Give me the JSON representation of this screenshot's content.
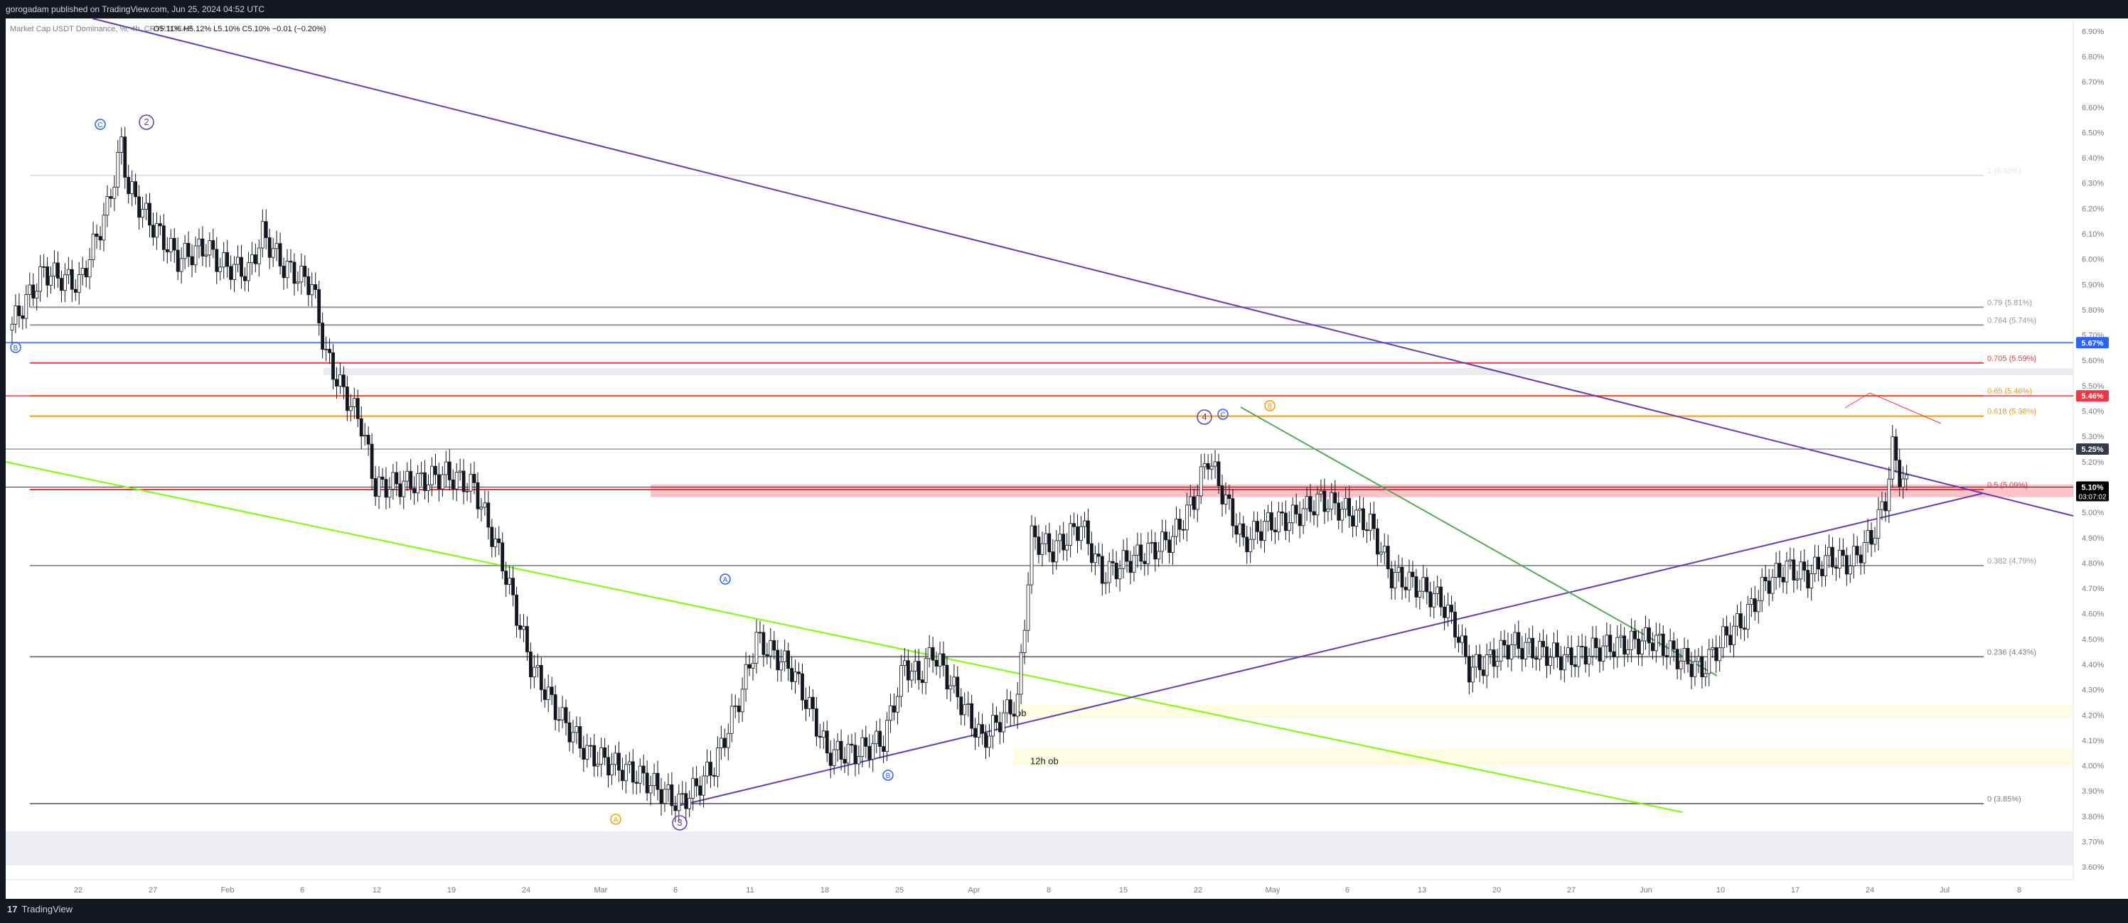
{
  "header": {
    "published": "gorogadam published on TradingView.com, Jun 25, 2024 04:52 UTC",
    "symbol_line": "Market Cap USDT Dominance, %, 4h, CRYPTOCAP",
    "ohlc": "O5.11% H5.12% L5.10% C5.10% −0.01 (−0.20%)"
  },
  "footer": {
    "logo_text": "TradingView",
    "logo_mark": "17"
  },
  "chart_data": {
    "type": "candlestick",
    "ylim": [
      3.55,
      6.95
    ],
    "y_ticks": [
      "6.90%",
      "6.80%",
      "6.70%",
      "6.60%",
      "6.50%",
      "6.40%",
      "6.30%",
      "6.20%",
      "6.10%",
      "6.00%",
      "5.90%",
      "5.80%",
      "5.70%",
      "5.60%",
      "5.50%",
      "5.40%",
      "5.30%",
      "5.20%",
      "5.10%",
      "5.00%",
      "4.90%",
      "4.80%",
      "4.70%",
      "4.60%",
      "4.50%",
      "4.40%",
      "4.30%",
      "4.20%",
      "4.10%",
      "4.00%",
      "3.90%",
      "3.80%",
      "3.70%",
      "3.60%"
    ],
    "x_ticks": [
      "22",
      "27",
      "Feb",
      "6",
      "12",
      "19",
      "24",
      "Mar",
      "6",
      "11",
      "18",
      "25",
      "Apr",
      "8",
      "15",
      "22",
      "May",
      "6",
      "13",
      "20",
      "27",
      "Jun",
      "10",
      "17",
      "24",
      "Jul",
      "8"
    ],
    "price_path": [
      [
        0,
        5.72
      ],
      [
        5,
        5.95
      ],
      [
        10,
        5.9
      ],
      [
        14,
        6.2
      ],
      [
        16,
        6.45
      ],
      [
        17,
        6.28
      ],
      [
        20,
        6.15
      ],
      [
        24,
        6.0
      ],
      [
        28,
        6.05
      ],
      [
        30,
        5.98
      ],
      [
        34,
        5.95
      ],
      [
        36,
        6.1
      ],
      [
        39,
        5.97
      ],
      [
        43,
        5.9
      ],
      [
        45,
        5.62
      ],
      [
        47,
        5.5
      ],
      [
        50,
        5.35
      ],
      [
        52,
        5.1
      ],
      [
        58,
        5.12
      ],
      [
        62,
        5.15
      ],
      [
        66,
        5.1
      ],
      [
        70,
        4.8
      ],
      [
        74,
        4.4
      ],
      [
        78,
        4.2
      ],
      [
        82,
        4.05
      ],
      [
        86,
        4.0
      ],
      [
        90,
        3.95
      ],
      [
        95,
        3.85
      ],
      [
        97,
        3.9
      ],
      [
        100,
        4.0
      ],
      [
        104,
        4.3
      ],
      [
        106,
        4.5
      ],
      [
        108,
        4.45
      ],
      [
        111,
        4.38
      ],
      [
        114,
        4.2
      ],
      [
        116,
        4.05
      ],
      [
        120,
        4.05
      ],
      [
        124,
        4.1
      ],
      [
        127,
        4.4
      ],
      [
        129,
        4.35
      ],
      [
        131,
        4.45
      ],
      [
        134,
        4.3
      ],
      [
        138,
        4.1
      ],
      [
        141,
        4.2
      ],
      [
        143,
        4.25
      ],
      [
        145,
        4.9
      ],
      [
        148,
        4.85
      ],
      [
        152,
        4.95
      ],
      [
        155,
        4.75
      ],
      [
        158,
        4.8
      ],
      [
        162,
        4.85
      ],
      [
        165,
        4.9
      ],
      [
        168,
        5.05
      ],
      [
        170,
        5.22
      ],
      [
        172,
        5.08
      ],
      [
        175,
        4.88
      ],
      [
        178,
        4.95
      ],
      [
        182,
        4.98
      ],
      [
        186,
        5.05
      ],
      [
        190,
        5.0
      ],
      [
        193,
        4.95
      ],
      [
        196,
        4.75
      ],
      [
        199,
        4.72
      ],
      [
        203,
        4.65
      ],
      [
        205,
        4.55
      ],
      [
        207,
        4.38
      ],
      [
        209,
        4.4
      ],
      [
        213,
        4.48
      ],
      [
        217,
        4.45
      ],
      [
        221,
        4.42
      ],
      [
        225,
        4.46
      ],
      [
        229,
        4.48
      ],
      [
        233,
        4.5
      ],
      [
        237,
        4.42
      ],
      [
        240,
        4.38
      ],
      [
        243,
        4.5
      ],
      [
        246,
        4.58
      ],
      [
        249,
        4.72
      ],
      [
        252,
        4.78
      ],
      [
        255,
        4.75
      ],
      [
        258,
        4.82
      ],
      [
        261,
        4.8
      ],
      [
        264,
        4.9
      ],
      [
        266,
        5.05
      ],
      [
        267,
        5.25
      ],
      [
        268,
        5.15
      ],
      [
        269,
        5.1
      ]
    ],
    "x_range": [
      0,
      291
    ],
    "annotations": {
      "fib_levels": [
        {
          "label": "1 (6.33%)",
          "value": 6.33,
          "color": "#e0e3eb"
        },
        {
          "label": "0.79 (5.81%)",
          "value": 5.81,
          "color": "#9598a1"
        },
        {
          "label": "0.764 (5.74%)",
          "value": 5.74,
          "color": "#9598a1"
        },
        {
          "label": "0.705 (5.59%)",
          "value": 5.59,
          "color": "#f23645"
        },
        {
          "label": "0.65 (5.46%)",
          "value": 5.46,
          "color": "#ff9800"
        },
        {
          "label": "0.618 (5.38%)",
          "value": 5.38,
          "color": "#ff9800"
        },
        {
          "label": "0.5 (5.09%)",
          "value": 5.09,
          "color": "#f23645"
        },
        {
          "label": "0.382 (4.79%)",
          "value": 4.79,
          "color": "#9598a1"
        },
        {
          "label": "0.236 (4.43%)",
          "value": 4.43,
          "color": "#787b86"
        },
        {
          "label": "0 (3.85%)",
          "value": 3.85,
          "color": "#787b86"
        }
      ],
      "zones": [
        {
          "label": "",
          "y_top": 5.11,
          "y_bottom": 5.06,
          "color": "#f23645"
        },
        {
          "label": "ob",
          "y_top": 4.24,
          "y_bottom": 4.19,
          "color": "#fff59d"
        },
        {
          "label": "12h ob",
          "y_top": 4.07,
          "y_bottom": 4.0,
          "color": "#fff59d"
        }
      ],
      "wave_labels": [
        "C",
        "2",
        "B",
        "A",
        "3",
        "A",
        "B",
        "4",
        "C",
        "B"
      ],
      "price_badges": [
        {
          "label": "5.67%",
          "value": 5.67,
          "color": "#2962ff"
        },
        {
          "label": "5.46%",
          "value": 5.46,
          "color": "#f23645"
        },
        {
          "label": "5.25%",
          "value": 5.25,
          "color": "#363a45"
        },
        {
          "label": "5.10%",
          "value": 5.1,
          "color": "#000000"
        }
      ],
      "countdown": "03:07:02"
    }
  }
}
